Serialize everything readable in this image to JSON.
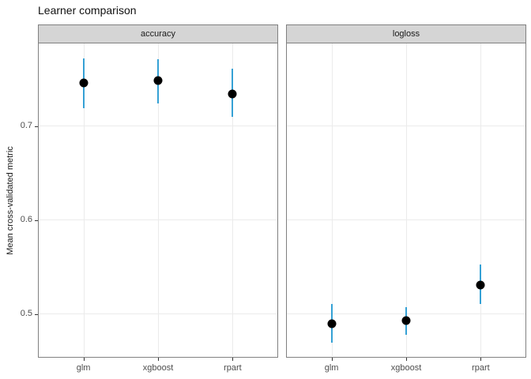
{
  "title": "Learner comparison",
  "colors": {
    "errorbar": "#35a1d5",
    "point": "#000000",
    "strip_background": "#d5d5d5",
    "panel_border": "#808080",
    "gridline": "#ebebeb",
    "axis_text": "#4d4d4d"
  },
  "chart_data": {
    "type": "pointrange",
    "title": "Learner comparison",
    "xlabel": "",
    "ylabel": "Mean cross-validated metric",
    "ylim": [
      0.454,
      0.788
    ],
    "yticks": [
      0.5,
      0.6,
      0.7
    ],
    "ytick_labels": [
      "0.5",
      "0.6",
      "0.7"
    ],
    "grid": "major",
    "legend": "none",
    "categories": [
      "glm",
      "xgboost",
      "rpart"
    ],
    "facets": [
      {
        "label": "accuracy",
        "points": [
          {
            "x": "glm",
            "mean": 0.746,
            "lower": 0.719,
            "upper": 0.772
          },
          {
            "x": "xgboost",
            "mean": 0.748,
            "lower": 0.724,
            "upper": 0.771
          },
          {
            "x": "rpart",
            "mean": 0.734,
            "lower": 0.71,
            "upper": 0.761
          }
        ]
      },
      {
        "label": "logloss",
        "points": [
          {
            "x": "glm",
            "mean": 0.489,
            "lower": 0.468,
            "upper": 0.51
          },
          {
            "x": "xgboost",
            "mean": 0.492,
            "lower": 0.477,
            "upper": 0.506
          },
          {
            "x": "rpart",
            "mean": 0.53,
            "lower": 0.51,
            "upper": 0.552
          }
        ]
      }
    ]
  }
}
